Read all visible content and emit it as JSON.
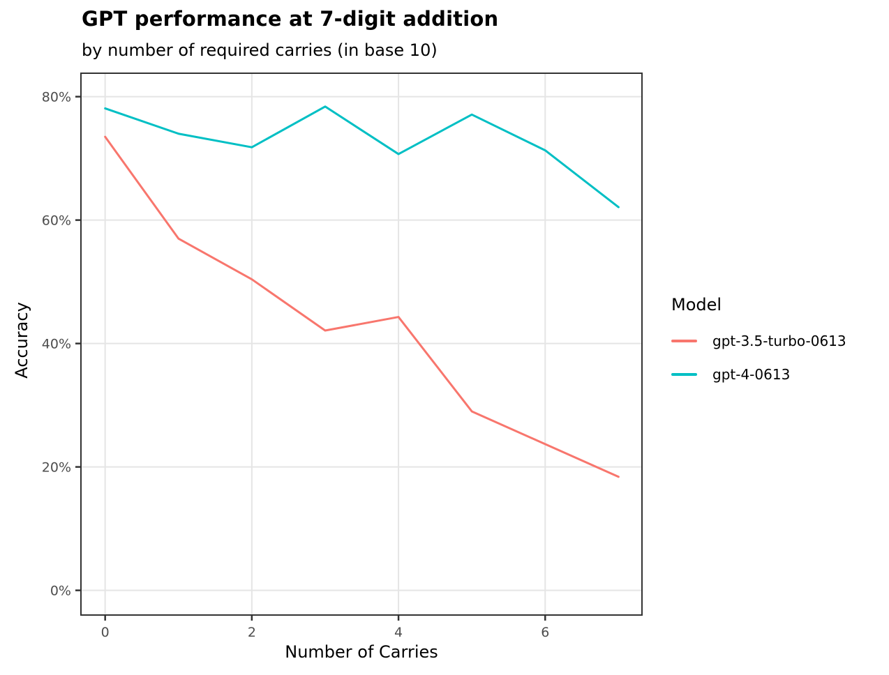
{
  "page": {
    "background": "#FFFFFF"
  },
  "chart_data": {
    "type": "line",
    "title": "GPT performance at 7-digit addition",
    "subtitle": "by number of required carries (in base 10)",
    "xlabel": "Number of Carries",
    "ylabel": "Accuracy",
    "x": [
      0,
      1,
      2,
      3,
      4,
      5,
      6,
      7
    ],
    "series": [
      {
        "name": "gpt-3.5-turbo-0613",
        "color": "#F8766D",
        "values": [
          73.5,
          57.0,
          50.4,
          42.1,
          44.3,
          29.0,
          23.7,
          18.4
        ]
      },
      {
        "name": "gpt-4-0613",
        "color": "#00BFC4",
        "values": [
          78.1,
          74.0,
          71.8,
          78.4,
          70.7,
          77.1,
          71.3,
          62.1
        ]
      }
    ],
    "x_ticks": [
      {
        "value": 0,
        "label": "0"
      },
      {
        "value": 2,
        "label": "2"
      },
      {
        "value": 4,
        "label": "4"
      },
      {
        "value": 6,
        "label": "6"
      }
    ],
    "y_ticks": [
      {
        "value": 0,
        "label": "0%"
      },
      {
        "value": 20,
        "label": "20%"
      },
      {
        "value": 40,
        "label": "40%"
      },
      {
        "value": 60,
        "label": "60%"
      },
      {
        "value": 80,
        "label": "80%"
      }
    ],
    "xlim": [
      -0.33,
      7.32
    ],
    "ylim": [
      -4.0,
      83.8
    ],
    "grid": "major-only",
    "legend": {
      "title": "Model",
      "position": "right"
    },
    "colors": {
      "grid": "#E5E5E5",
      "panel_border": "#333333",
      "tick": "#333333",
      "tick_label": "#4D4D4D",
      "text": "#000000"
    }
  }
}
